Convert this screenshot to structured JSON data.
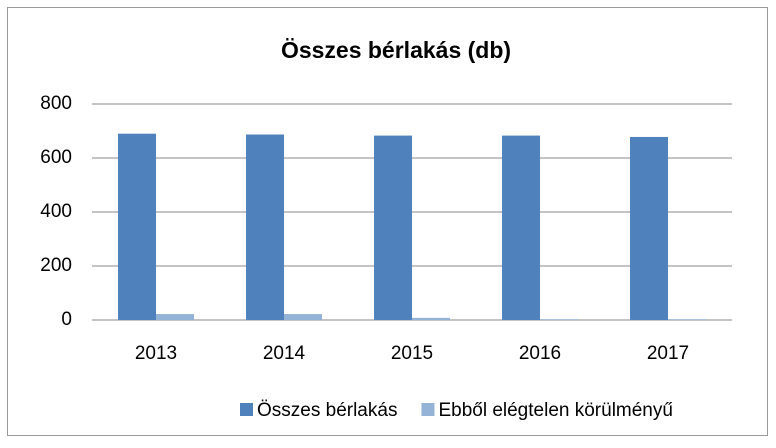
{
  "chart_data": {
    "type": "bar",
    "title": "Összes bérlakás (db)",
    "categories": [
      "2013",
      "2014",
      "2015",
      "2016",
      "2017"
    ],
    "series": [
      {
        "name": "Összes bérlakás",
        "color": "#4f81bd",
        "values": [
          690,
          687,
          683,
          683,
          678
        ]
      },
      {
        "name": "Ebből elégtelen körülményű",
        "color": "#95b3d7",
        "values": [
          22,
          22,
          8,
          3,
          3
        ]
      }
    ],
    "ylim": [
      0,
      800
    ],
    "yticks": [
      0,
      200,
      400,
      600,
      800
    ],
    "grid": true,
    "legend": "bottom"
  }
}
